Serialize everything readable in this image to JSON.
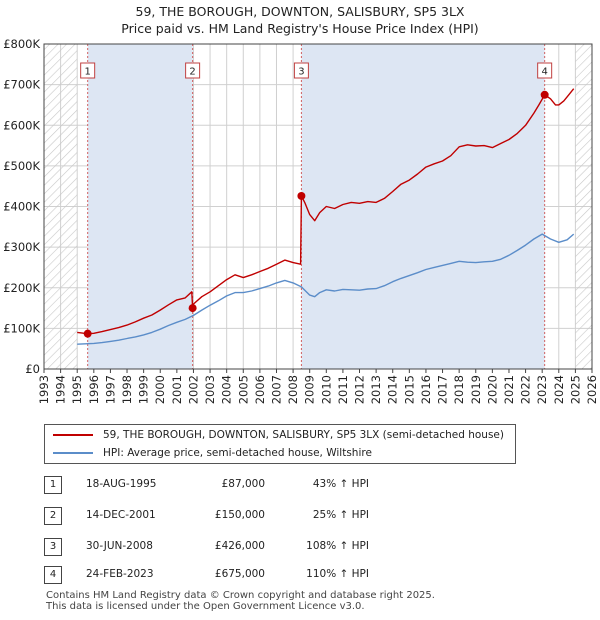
{
  "title_line1": "59, THE BOROUGH, DOWNTON, SALISBURY, SP5 3LX",
  "title_line2": "Price paid vs. HM Land Registry's House Price Index (HPI)",
  "colors": {
    "property": "#c00000",
    "hpi": "#5b8dc9",
    "shade": "#dde6f3",
    "grid": "#d0d0d0",
    "marker_line": "#d06060"
  },
  "legend": {
    "property_label": "59, THE BOROUGH, DOWNTON, SALISBURY, SP5 3LX (semi-detached house)",
    "hpi_label": "HPI: Average price, semi-detached house, Wiltshire"
  },
  "transactions": [
    {
      "num": "1",
      "date": "18-AUG-1995",
      "price": "£87,000",
      "hpi": "43% ↑ HPI"
    },
    {
      "num": "2",
      "date": "14-DEC-2001",
      "price": "£150,000",
      "hpi": "25% ↑ HPI"
    },
    {
      "num": "3",
      "date": "30-JUN-2008",
      "price": "£426,000",
      "hpi": "108% ↑ HPI"
    },
    {
      "num": "4",
      "date": "24-FEB-2023",
      "price": "£675,000",
      "hpi": "110% ↑ HPI"
    }
  ],
  "footer_line1": "Contains HM Land Registry data © Crown copyright and database right 2025.",
  "footer_line2": "This data is licensed under the Open Government Licence v3.0.",
  "chart_data": {
    "type": "line",
    "title": "59, THE BOROUGH, DOWNTON, SALISBURY, SP5 3LX",
    "subtitle": "Price paid vs. HM Land Registry's House Price Index (HPI)",
    "xlabel": "",
    "ylabel": "",
    "xlim": [
      1993,
      2026
    ],
    "ylim": [
      0,
      800000
    ],
    "x_ticks": [
      "1993",
      "1994",
      "1995",
      "1996",
      "1997",
      "1998",
      "1999",
      "2000",
      "2001",
      "2002",
      "2003",
      "2004",
      "2005",
      "2006",
      "2007",
      "2008",
      "2009",
      "2010",
      "2011",
      "2012",
      "2013",
      "2014",
      "2015",
      "2016",
      "2017",
      "2018",
      "2019",
      "2020",
      "2021",
      "2022",
      "2023",
      "2024",
      "2025",
      "2026"
    ],
    "y_ticks": [
      {
        "value": 0,
        "label": "£0"
      },
      {
        "value": 100000,
        "label": "£100K"
      },
      {
        "value": 200000,
        "label": "£200K"
      },
      {
        "value": 300000,
        "label": "£300K"
      },
      {
        "value": 400000,
        "label": "£400K"
      },
      {
        "value": 500000,
        "label": "£500K"
      },
      {
        "value": 600000,
        "label": "£600K"
      },
      {
        "value": 700000,
        "label": "£700K"
      },
      {
        "value": 800000,
        "label": "£800K"
      }
    ],
    "hatched_ranges": [
      [
        1993,
        1995
      ],
      [
        2025,
        2026
      ]
    ],
    "grid": true,
    "markers": [
      {
        "label": "1",
        "x": 1995.63,
        "y": 87000
      },
      {
        "label": "2",
        "x": 2001.95,
        "y": 150000
      },
      {
        "label": "3",
        "x": 2008.5,
        "y": 426000
      },
      {
        "label": "4",
        "x": 2023.15,
        "y": 675000
      }
    ],
    "series": [
      {
        "name": "59, THE BOROUGH, DOWNTON, SALISBURY, SP5 3LX (semi-detached house)",
        "x": [
          1995.0,
          1995.63,
          1996.0,
          1996.5,
          1997.0,
          1997.5,
          1998.0,
          1998.5,
          1999.0,
          1999.5,
          2000.0,
          2000.5,
          2001.0,
          2001.5,
          2001.9,
          2001.95,
          2002.0,
          2002.5,
          2003.0,
          2003.5,
          2004.0,
          2004.5,
          2005.0,
          2005.5,
          2006.0,
          2006.5,
          2007.0,
          2007.5,
          2008.0,
          2008.45,
          2008.5,
          2008.7,
          2009.0,
          2009.3,
          2009.6,
          2010.0,
          2010.5,
          2011.0,
          2011.5,
          2012.0,
          2012.5,
          2013.0,
          2013.5,
          2014.0,
          2014.5,
          2015.0,
          2015.5,
          2016.0,
          2016.5,
          2017.0,
          2017.5,
          2018.0,
          2018.5,
          2019.0,
          2019.5,
          2020.0,
          2020.5,
          2021.0,
          2021.5,
          2022.0,
          2022.5,
          2022.8,
          2023.15,
          2023.5,
          2023.8,
          2024.0,
          2024.3,
          2024.6,
          2024.9
        ],
        "values": [
          90000,
          87000,
          88000,
          92000,
          97000,
          102000,
          108000,
          116000,
          125000,
          133000,
          145000,
          158000,
          170000,
          175000,
          190000,
          150000,
          160000,
          178000,
          190000,
          205000,
          220000,
          232000,
          225000,
          232000,
          240000,
          248000,
          258000,
          268000,
          262000,
          258000,
          426000,
          410000,
          380000,
          365000,
          385000,
          400000,
          395000,
          405000,
          410000,
          408000,
          412000,
          410000,
          420000,
          437000,
          455000,
          465000,
          480000,
          497000,
          505000,
          512000,
          525000,
          547000,
          552000,
          549000,
          550000,
          545000,
          555000,
          565000,
          580000,
          600000,
          630000,
          650000,
          675000,
          665000,
          650000,
          650000,
          660000,
          675000,
          690000
        ]
      },
      {
        "name": "HPI: Average price, semi-detached house, Wiltshire",
        "x": [
          1995.0,
          1995.5,
          1996.0,
          1996.5,
          1997.0,
          1997.5,
          1998.0,
          1998.5,
          1999.0,
          1999.5,
          2000.0,
          2000.5,
          2001.0,
          2001.5,
          2002.0,
          2002.5,
          2003.0,
          2003.5,
          2004.0,
          2004.5,
          2005.0,
          2005.5,
          2006.0,
          2006.5,
          2007.0,
          2007.5,
          2008.0,
          2008.5,
          2009.0,
          2009.3,
          2009.6,
          2010.0,
          2010.5,
          2011.0,
          2011.5,
          2012.0,
          2012.5,
          2013.0,
          2013.5,
          2014.0,
          2014.5,
          2015.0,
          2015.5,
          2016.0,
          2016.5,
          2017.0,
          2017.5,
          2018.0,
          2018.5,
          2019.0,
          2019.5,
          2020.0,
          2020.5,
          2021.0,
          2021.5,
          2022.0,
          2022.5,
          2023.0,
          2023.5,
          2024.0,
          2024.5,
          2024.9
        ],
        "values": [
          61000,
          62000,
          63000,
          65000,
          68000,
          71000,
          75000,
          79000,
          84000,
          90000,
          98000,
          107000,
          115000,
          122000,
          132000,
          145000,
          157000,
          168000,
          180000,
          188000,
          188000,
          192000,
          198000,
          204000,
          212000,
          218000,
          212000,
          202000,
          182000,
          178000,
          188000,
          195000,
          192000,
          196000,
          195000,
          194000,
          197000,
          198000,
          205000,
          215000,
          223000,
          230000,
          237000,
          245000,
          250000,
          255000,
          260000,
          265000,
          263000,
          262000,
          264000,
          265000,
          270000,
          280000,
          292000,
          305000,
          320000,
          332000,
          320000,
          312000,
          318000,
          332000
        ]
      }
    ]
  }
}
